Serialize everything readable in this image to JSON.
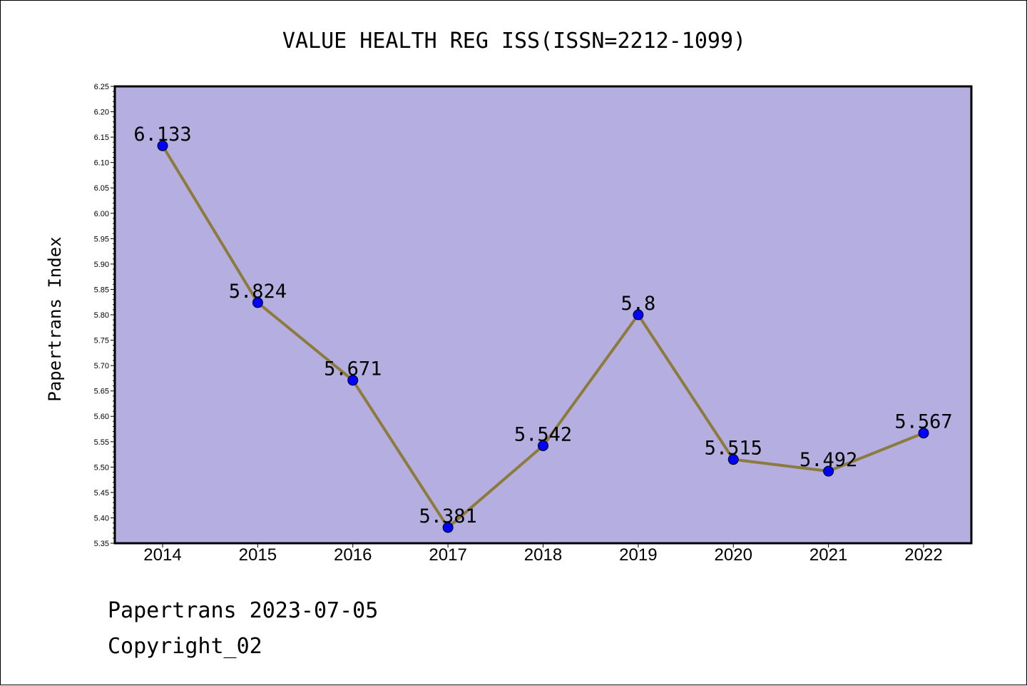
{
  "chart_data": {
    "type": "line",
    "title": "VALUE HEALTH REG ISS(ISSN=2212-1099)",
    "xlabel": "",
    "ylabel": "Papertrans Index",
    "categories": [
      "2014",
      "2015",
      "2016",
      "2017",
      "2018",
      "2019",
      "2020",
      "2021",
      "2022"
    ],
    "values": [
      6.133,
      5.824,
      5.671,
      5.381,
      5.542,
      5.8,
      5.515,
      5.492,
      5.567
    ],
    "data_labels": [
      "6.133",
      "5.824",
      "5.671",
      "5.381",
      "5.542",
      "5.8",
      "5.515",
      "5.492",
      "5.567"
    ],
    "ylim": [
      5.35,
      6.25
    ],
    "yticks": [
      "5.35",
      "5.40",
      "5.45",
      "5.50",
      "5.55",
      "5.60",
      "5.65",
      "5.70",
      "5.75",
      "5.80",
      "5.85",
      "5.90",
      "5.95",
      "6.00",
      "6.05",
      "6.10",
      "6.15",
      "6.20",
      "6.25"
    ],
    "grid": false,
    "legend": "none",
    "colors": {
      "plot_background": "#b5aee1",
      "line": "#8c7b3c",
      "marker": "#0000ff"
    }
  },
  "footer": {
    "line1": "Papertrans 2023-07-05",
    "line2": "Copyright_02"
  }
}
